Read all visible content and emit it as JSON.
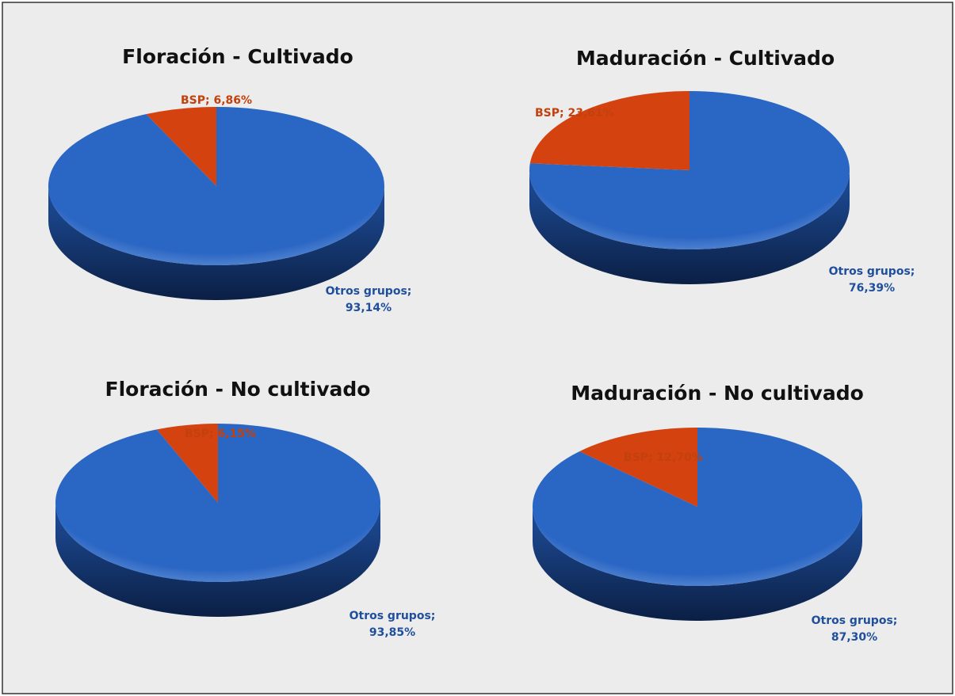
{
  "chart_data": [
    {
      "type": "pie",
      "title": "Floración - Cultivado",
      "categories": [
        "BSP",
        "Otros grupos"
      ],
      "values": [
        6.86,
        93.14
      ],
      "value_labels": [
        "BSP; 6,86%",
        "Otros grupos; 93,14%"
      ],
      "colors": [
        "#d4420f",
        "#2a66c4"
      ]
    },
    {
      "type": "pie",
      "title": "Maduración - Cultivado",
      "categories": [
        "BSP",
        "Otros grupos"
      ],
      "values": [
        23.61,
        76.39
      ],
      "value_labels": [
        "BSP; 23,61%",
        "Otros grupos; 76,39%"
      ],
      "colors": [
        "#d4420f",
        "#2a66c4"
      ]
    },
    {
      "type": "pie",
      "title": "Floración - No cultivado",
      "categories": [
        "BSP",
        "Otros grupos"
      ],
      "values": [
        6.15,
        93.85
      ],
      "value_labels": [
        "BSP; 6,15%",
        "Otros grupos; 93,85%"
      ],
      "colors": [
        "#d4420f",
        "#2a66c4"
      ]
    },
    {
      "type": "pie",
      "title": "Maduración - No cultivado",
      "categories": [
        "BSP",
        "Otros grupos"
      ],
      "values": [
        12.7,
        87.3
      ],
      "value_labels": [
        "BSP; 12,70%",
        "Otros grupos; 87,30%"
      ],
      "colors": [
        "#d4420f",
        "#2a66c4"
      ]
    }
  ]
}
